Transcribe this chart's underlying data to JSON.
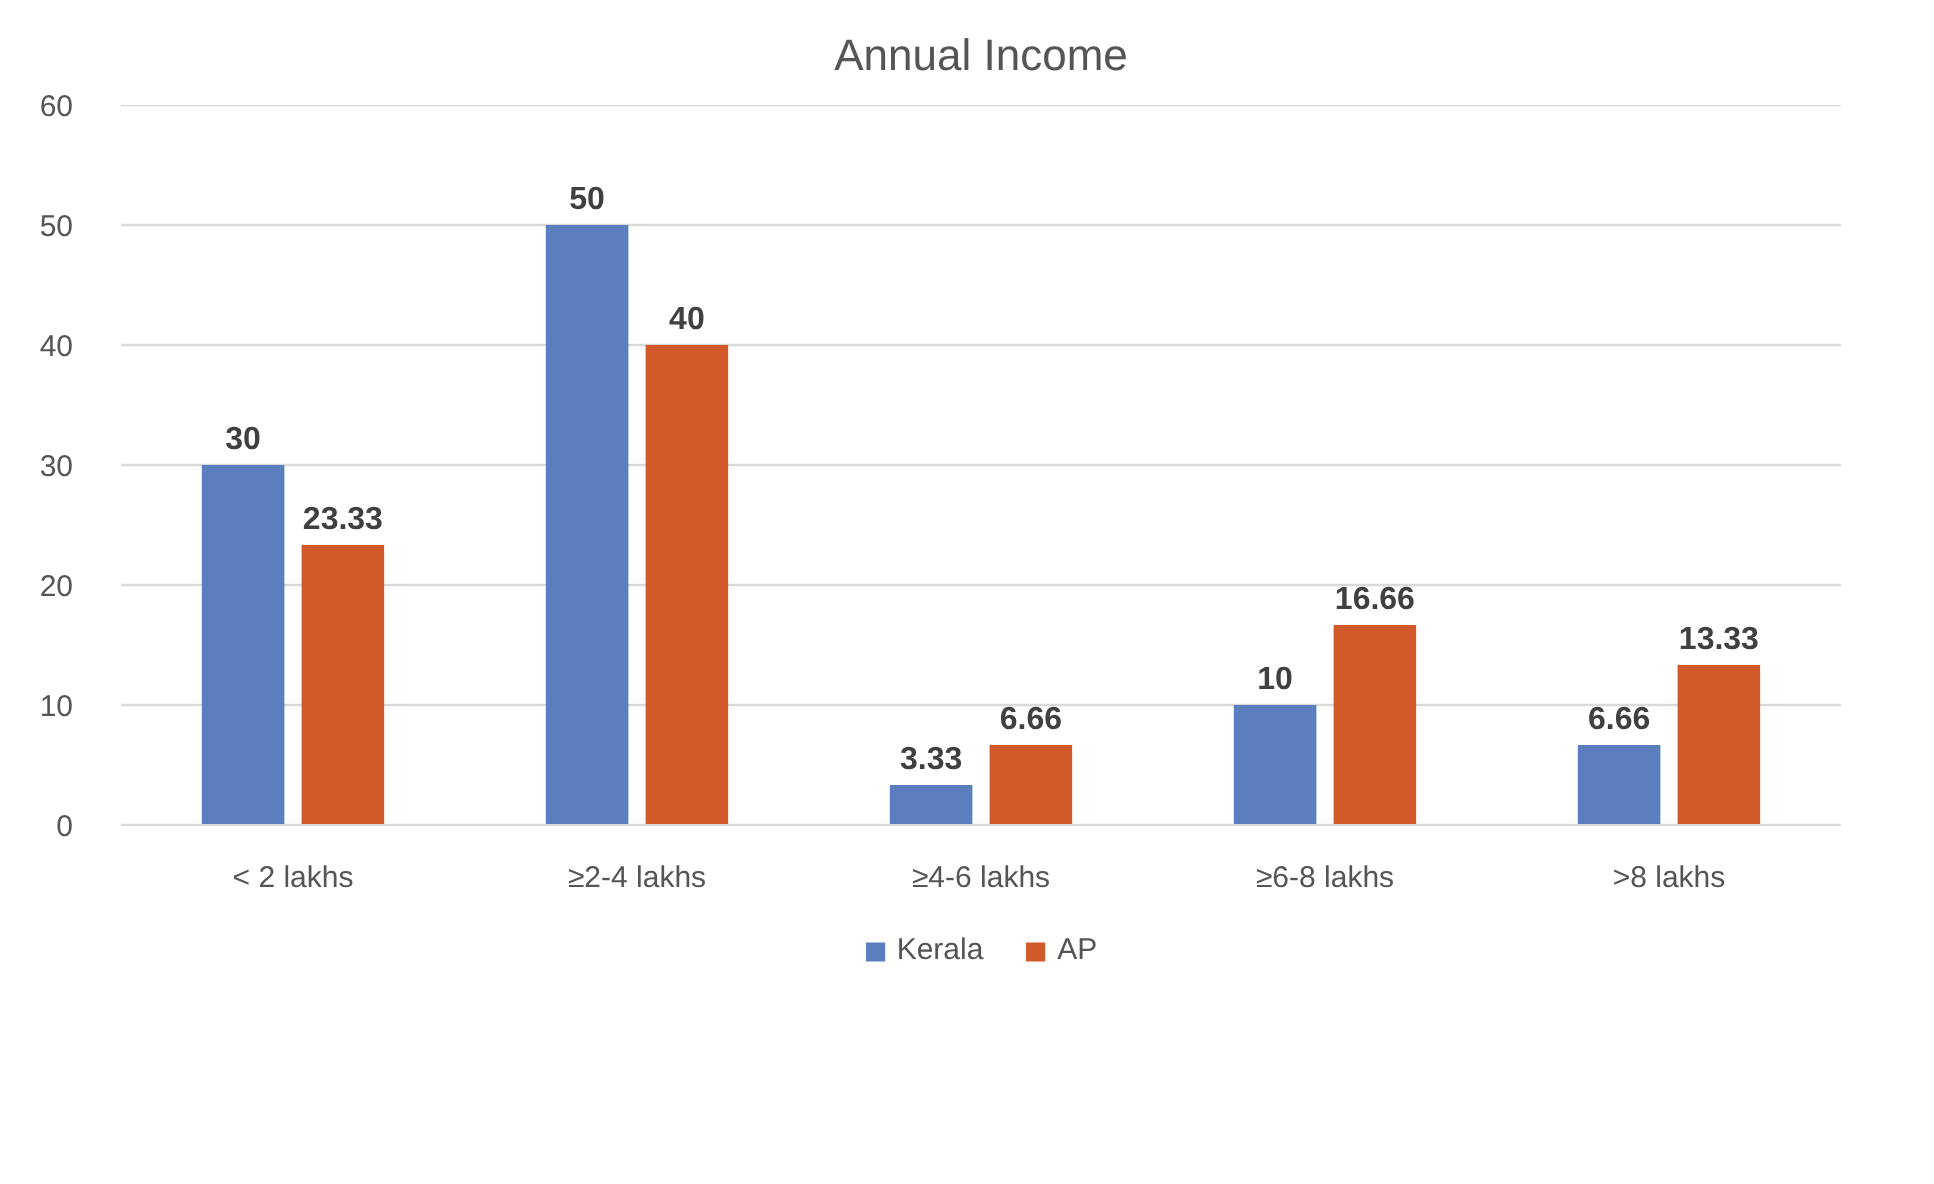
{
  "chart_data": {
    "type": "bar",
    "title": "Annual Income",
    "categories": [
      "< 2 lakhs",
      "≥2-4 lakhs",
      "≥4-6 lakhs",
      "≥6-8 lakhs",
      ">8 lakhs"
    ],
    "series": [
      {
        "name": "Kerala",
        "color": "#5b7fbe",
        "values": [
          30,
          50,
          3.33,
          10,
          6.66
        ]
      },
      {
        "name": "AP",
        "color": "#d2592a",
        "values": [
          23.33,
          40,
          6.66,
          16.66,
          13.33
        ]
      }
    ],
    "ylim": [
      0,
      60
    ],
    "yticks": [
      0,
      10,
      20,
      30,
      40,
      50,
      60
    ],
    "grid": "y",
    "legend": "bottom",
    "data_labels": true
  }
}
